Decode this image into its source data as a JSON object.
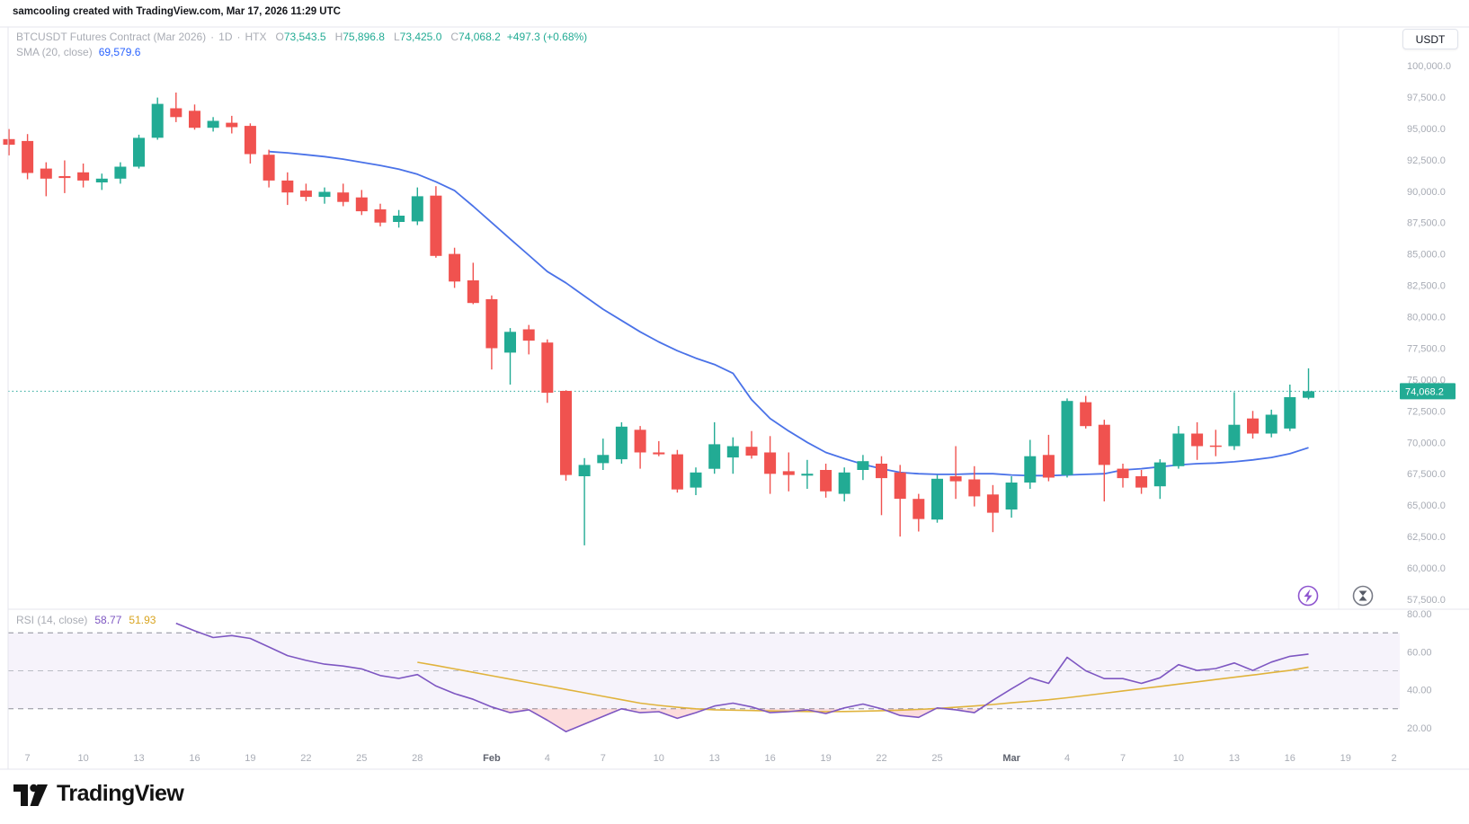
{
  "header": {
    "credit": "samcooling created with TradingView.com, Mar 17, 2026 11:29 UTC"
  },
  "legend": {
    "symbol": "BTCUSDT Futures Contract (Mar 2026)",
    "separator": "·",
    "interval": "1D",
    "exchange": "HTX",
    "o_label": "O",
    "o": "73,543.5",
    "h_label": "H",
    "h": "75,896.8",
    "l_label": "L",
    "l": "73,425.0",
    "c_label": "C",
    "c": "74,068.2",
    "change": "+497.3 (+0.68%)",
    "sma_label": "SMA (20, close)",
    "sma_value": "69,579.6",
    "rsi_label": "RSI (14, close)",
    "rsi_value": "58.77",
    "rsi_ma_value": "51.93"
  },
  "price_axis": {
    "currency": "USDT",
    "labels": [
      "100,000.0",
      "97,500.0",
      "95,000.0",
      "92,500.0",
      "90,000.0",
      "87,500.0",
      "85,000.0",
      "82,500.0",
      "80,000.0",
      "77,500.0",
      "75,000.0",
      "72,500.0",
      "70,000.0",
      "67,500.0",
      "65,000.0",
      "62,500.0",
      "60,000.0",
      "57,500.0"
    ],
    "values": [
      100000,
      97500,
      95000,
      92500,
      90000,
      87500,
      85000,
      82500,
      80000,
      77500,
      75000,
      72500,
      70000,
      67500,
      65000,
      62500,
      60000,
      57500
    ],
    "last_price_label": "74,068.2"
  },
  "rsi_axis": {
    "labels": [
      "80.00",
      "60.00",
      "40.00",
      "20.00"
    ],
    "values": [
      80,
      60,
      40,
      20
    ]
  },
  "time_axis": {
    "ticks": [
      {
        "label": "7",
        "day": 1
      },
      {
        "label": "10",
        "day": 4
      },
      {
        "label": "13",
        "day": 7
      },
      {
        "label": "16",
        "day": 10
      },
      {
        "label": "19",
        "day": 13
      },
      {
        "label": "22",
        "day": 16
      },
      {
        "label": "25",
        "day": 19
      },
      {
        "label": "28",
        "day": 22
      },
      {
        "label": "Feb",
        "day": 26,
        "strong": true
      },
      {
        "label": "4",
        "day": 29
      },
      {
        "label": "7",
        "day": 32
      },
      {
        "label": "10",
        "day": 35
      },
      {
        "label": "13",
        "day": 38
      },
      {
        "label": "16",
        "day": 41
      },
      {
        "label": "19",
        "day": 44
      },
      {
        "label": "22",
        "day": 47
      },
      {
        "label": "25",
        "day": 50
      },
      {
        "label": "Mar",
        "day": 54,
        "strong": true
      },
      {
        "label": "4",
        "day": 57
      },
      {
        "label": "7",
        "day": 60
      },
      {
        "label": "10",
        "day": 63
      },
      {
        "label": "13",
        "day": 66
      },
      {
        "label": "16",
        "day": 69
      },
      {
        "label": "19",
        "day": 72
      },
      {
        "label": "2",
        "day": 74.6
      }
    ]
  },
  "footer": {
    "brand": "TradingView"
  },
  "colors": {
    "up": "#22ab94",
    "down": "#f0524f",
    "sma": "#4a72e8",
    "rsi": "#7e57c2",
    "rsi_ma": "#e0b33c",
    "badge": "#22ab94",
    "dotted_line": "#26a69a",
    "band_fill": "rgba(126,87,194,0.07)",
    "oversold_fill": "rgba(240,82,79,0.2)",
    "axis_text": "#a8acb5",
    "axis_text_strong": "#5f636e",
    "border": "#e4e6ec",
    "faint_line": "#f0f1f5",
    "dash_strong": "#8d909a",
    "dash_mid": "#b9bcc4",
    "icon_gray": "#787b86",
    "icon_purple": "#8e55cf"
  },
  "chart_data": [
    {
      "type": "candlestick",
      "title": "BTCUSDT Futures Contract (Mar 2026) · 1D · HTX",
      "ylabel": "USDT",
      "ylim": [
        57500,
        100000
      ],
      "start_date": "Jan 6",
      "end_date": "Mar 17",
      "last_close": 74068.2,
      "ohlc": [
        [
          94150,
          94950,
          92850,
          93700
        ],
        [
          94000,
          94550,
          90950,
          91450
        ],
        [
          91800,
          92300,
          89600,
          91000
        ],
        [
          91200,
          92450,
          89850,
          91050
        ],
        [
          91500,
          92200,
          90300,
          90850
        ],
        [
          90700,
          91400,
          90100,
          91000
        ],
        [
          91000,
          92300,
          90600,
          91950
        ],
        [
          91950,
          94500,
          91800,
          94250
        ],
        [
          94250,
          97450,
          94100,
          96950
        ],
        [
          96600,
          97850,
          95500,
          95900
        ],
        [
          96400,
          96900,
          94900,
          95050
        ],
        [
          95050,
          95900,
          94750,
          95600
        ],
        [
          95450,
          96000,
          94600,
          95100
        ],
        [
          95200,
          95400,
          92200,
          92950
        ],
        [
          92900,
          93300,
          90300,
          90850
        ],
        [
          90850,
          91500,
          88900,
          89900
        ],
        [
          90050,
          90600,
          89200,
          89550
        ],
        [
          89550,
          90300,
          89000,
          89950
        ],
        [
          89900,
          90600,
          88800,
          89150
        ],
        [
          89500,
          90100,
          88100,
          88400
        ],
        [
          88550,
          89000,
          87200,
          87500
        ],
        [
          87550,
          88500,
          87100,
          88050
        ],
        [
          87600,
          90300,
          87300,
          89600
        ],
        [
          89650,
          90400,
          84700,
          84850
        ],
        [
          85000,
          85500,
          82300,
          82800
        ],
        [
          82900,
          84300,
          81000,
          81100
        ],
        [
          81400,
          81700,
          75800,
          77500
        ],
        [
          77150,
          79100,
          74600,
          78800
        ],
        [
          79000,
          79350,
          77000,
          78100
        ],
        [
          77950,
          78200,
          73150,
          73950
        ],
        [
          74100,
          74150,
          66950,
          67400
        ],
        [
          67300,
          68750,
          61800,
          68200
        ],
        [
          68350,
          70300,
          67800,
          69000
        ],
        [
          68650,
          71600,
          68300,
          71250
        ],
        [
          71000,
          71300,
          67900,
          69200
        ],
        [
          69200,
          70100,
          68900,
          69050
        ],
        [
          69050,
          69400,
          66000,
          66250
        ],
        [
          66400,
          68000,
          65800,
          67600
        ],
        [
          67900,
          71600,
          67500,
          69850
        ],
        [
          68800,
          70400,
          67500,
          69700
        ],
        [
          69650,
          70900,
          68700,
          68950
        ],
        [
          69200,
          70500,
          65900,
          67500
        ],
        [
          67700,
          69200,
          66100,
          67400
        ],
        [
          67350,
          68600,
          66300,
          67500
        ],
        [
          67800,
          68300,
          65600,
          66100
        ],
        [
          65900,
          68000,
          65300,
          67600
        ],
        [
          67800,
          69000,
          67000,
          68500
        ],
        [
          68300,
          68900,
          64200,
          67150
        ],
        [
          67600,
          68200,
          62500,
          65500
        ],
        [
          65500,
          65900,
          62900,
          63900
        ],
        [
          63850,
          67400,
          63600,
          67100
        ],
        [
          67300,
          69700,
          65500,
          66900
        ],
        [
          67050,
          68100,
          64900,
          65700
        ],
        [
          65850,
          66600,
          62850,
          64400
        ],
        [
          64650,
          67300,
          64000,
          66800
        ],
        [
          66800,
          70200,
          66300,
          68900
        ],
        [
          69000,
          70600,
          66900,
          67200
        ],
        [
          67400,
          73500,
          67200,
          73300
        ],
        [
          73200,
          73700,
          71100,
          71300
        ],
        [
          71400,
          71800,
          65300,
          68200
        ],
        [
          67900,
          68300,
          66400,
          67150
        ],
        [
          67300,
          67800,
          65900,
          66400
        ],
        [
          66500,
          68650,
          65500,
          68400
        ],
        [
          68100,
          71300,
          67900,
          70700
        ],
        [
          70700,
          71600,
          68600,
          69700
        ],
        [
          69750,
          71000,
          68900,
          69650
        ],
        [
          69700,
          74000,
          69400,
          71400
        ],
        [
          71900,
          72500,
          70300,
          70700
        ],
        [
          70700,
          72600,
          70400,
          72200
        ],
        [
          71100,
          74600,
          70900,
          73600
        ],
        [
          73543.5,
          75896.8,
          73425,
          74068.2
        ]
      ],
      "sma20": {
        "name": "SMA (20, close)",
        "start_index": 14,
        "values": [
          93150,
          93050,
          92900,
          92750,
          92550,
          92300,
          92050,
          91750,
          91350,
          90750,
          90050,
          88800,
          87500,
          86200,
          84900,
          83600,
          82700,
          81650,
          80600,
          79700,
          78800,
          78000,
          77300,
          76700,
          76200,
          75500,
          73400,
          71900,
          70900,
          70000,
          69200,
          68700,
          68250,
          67900,
          67600,
          67500,
          67450,
          67450,
          67500,
          67500,
          67400,
          67350,
          67350,
          67400,
          67450,
          67500,
          67800,
          67900,
          68050,
          68200,
          68300,
          68350,
          68450,
          68600,
          68800,
          69100,
          69579.6
        ]
      }
    },
    {
      "type": "line",
      "title": "RSI (14, close)",
      "ylim": [
        10,
        85
      ],
      "bands": [
        70,
        50,
        30
      ],
      "series": [
        {
          "name": "RSI",
          "start_index": 9,
          "values": [
            75,
            71,
            67.5,
            68.5,
            67,
            62.5,
            58,
            55.5,
            53.5,
            52.5,
            51,
            47.5,
            46,
            48,
            42,
            38,
            35,
            31,
            28,
            29.5,
            24,
            18,
            22,
            26,
            30,
            28,
            28.5,
            25,
            28,
            31.5,
            33,
            31,
            28,
            28.5,
            29.5,
            27.5,
            30.5,
            32.5,
            30,
            26.5,
            25.5,
            30.5,
            29.5,
            28,
            34.5,
            40.5,
            46.3,
            43.4,
            57.1,
            50,
            45.9,
            45.9,
            43.4,
            46.3,
            53.2,
            50.2,
            51.2,
            54.1,
            50.2,
            54.6,
            57.6,
            58.77
          ]
        },
        {
          "name": "RSI-based MA",
          "start_index": 22,
          "values": [
            54.5,
            52.8,
            51,
            49.2,
            47.4,
            45.6,
            43.8,
            42,
            40.2,
            38.4,
            36.6,
            34.8,
            33,
            31.8,
            30.8,
            30,
            29.5,
            29.3,
            29.1,
            28.9,
            28.7,
            28.6,
            28.5,
            28.6,
            28.8,
            29,
            29.3,
            29.7,
            30.2,
            30.8,
            31.5,
            32.3,
            33.2,
            34,
            34.8,
            35.8,
            37,
            38.2,
            39.4,
            40.6,
            41.8,
            43,
            44.2,
            45.4,
            46.6,
            47.8,
            49,
            50.2,
            51.93
          ]
        }
      ]
    }
  ]
}
